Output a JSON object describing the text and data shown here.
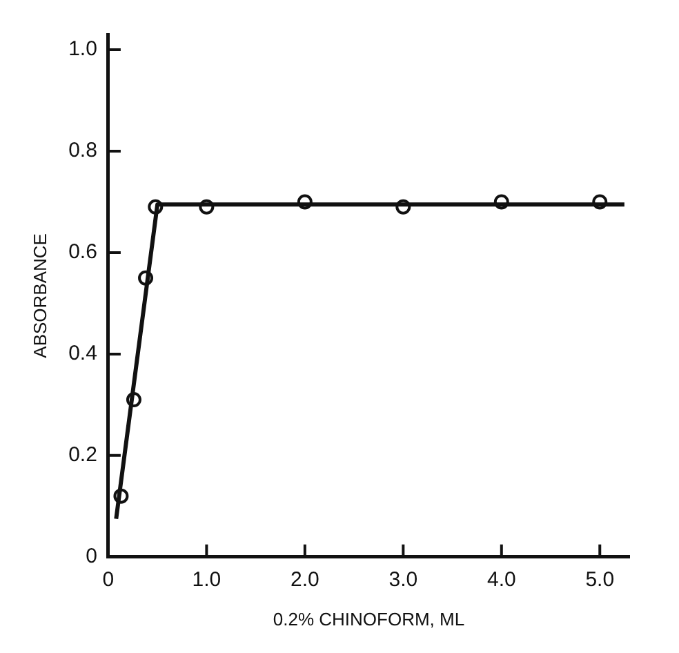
{
  "chart_data": {
    "type": "scatter",
    "xlabel": "0.2% CHINOFORM, ML",
    "ylabel": "ABSORBANCE",
    "xlim": [
      0,
      5.3
    ],
    "ylim": [
      0,
      1.03
    ],
    "xticks": [
      0,
      {
        "value": 1,
        "label": "1.0"
      },
      {
        "value": 2,
        "label": "2.0"
      },
      {
        "value": 3,
        "label": "3.0"
      },
      {
        "value": 4,
        "label": "4.0"
      },
      {
        "value": 5,
        "label": "5.0"
      }
    ],
    "yticks": [
      0,
      0.2,
      0.4,
      0.6,
      0.8,
      {
        "value": 1,
        "label": "1.0"
      }
    ],
    "grid": false,
    "legend": false,
    "series": [
      {
        "type": "line",
        "marker": "none",
        "color": "#111111",
        "x": [
          0.08,
          0.5,
          5.25
        ],
        "values": [
          0.075,
          0.695,
          0.695
        ]
      },
      {
        "marker": "circle",
        "color": "#111111",
        "x": [
          0.13,
          0.26,
          0.38,
          0.48,
          1,
          2,
          3,
          4,
          5
        ],
        "values": [
          0.12,
          0.31,
          0.55,
          0.69,
          0.69,
          0.7,
          0.69,
          0.7,
          0.7
        ]
      }
    ]
  }
}
